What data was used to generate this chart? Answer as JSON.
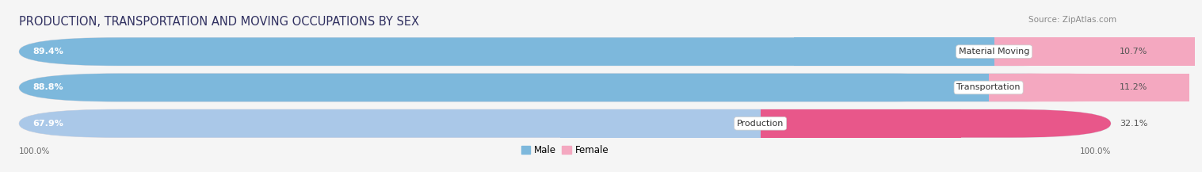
{
  "title": "PRODUCTION, TRANSPORTATION AND MOVING OCCUPATIONS BY SEX",
  "source": "Source: ZipAtlas.com",
  "categories": [
    "Material Moving",
    "Transportation",
    "Production"
  ],
  "male_values": [
    89.4,
    88.8,
    67.9
  ],
  "female_values": [
    10.7,
    11.2,
    32.1
  ],
  "male_color_top2": "#7db8dc",
  "male_color_bottom": "#aac8e8",
  "female_color_top2": "#f4a8c0",
  "female_color_bottom": "#e8578a",
  "bg_color": "#f5f5f5",
  "bar_bg_color": "#e8e8ee",
  "bar_outline_color": "#d0d0d8",
  "title_color": "#303060",
  "source_color": "#888888",
  "label_color": "#444444",
  "pct_color_male": "#ffffff",
  "pct_color_female": "#666666",
  "title_fontsize": 10.5,
  "source_fontsize": 7.5,
  "bar_label_fontsize": 8,
  "pct_fontsize": 8,
  "legend_fontsize": 8.5
}
